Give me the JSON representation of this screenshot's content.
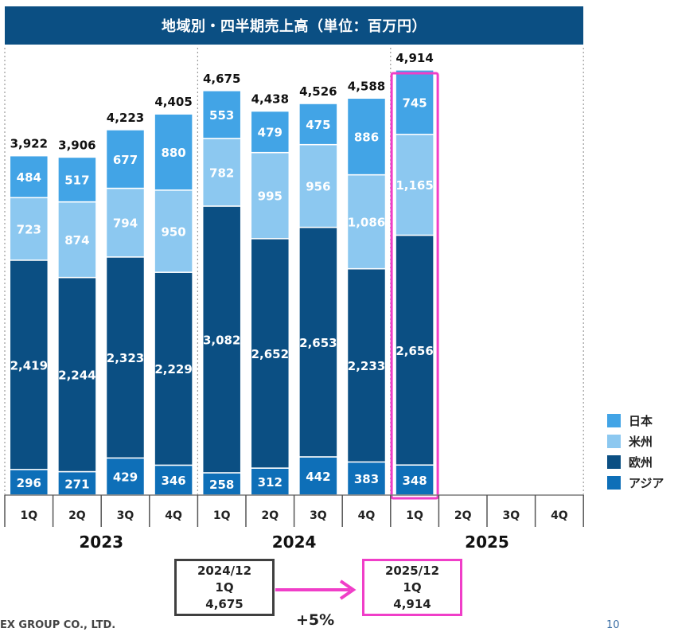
{
  "title": "地域別・四半期売上高（単位：百万円）",
  "colors": {
    "japan": "#42a4e6",
    "americas": "#8cc8f0",
    "europe": "#0b4f83",
    "asia": "#0e6fb8",
    "highlight": "#f03ec8"
  },
  "chart_data": {
    "type": "bar",
    "stacked": true,
    "title": "地域別・四半期売上高（単位：百万円）",
    "ylim": [
      0,
      5000
    ],
    "categories": [
      "1Q",
      "2Q",
      "3Q",
      "4Q",
      "1Q",
      "2Q",
      "3Q",
      "4Q",
      "1Q",
      "2Q",
      "3Q",
      "4Q"
    ],
    "years": [
      {
        "label": "2023",
        "quarters": 4
      },
      {
        "label": "2024",
        "quarters": 4
      },
      {
        "label": "2025",
        "quarters": 4
      }
    ],
    "series": [
      {
        "name": "アジア",
        "color": "#0e6fb8",
        "values": [
          296,
          271,
          429,
          346,
          258,
          312,
          442,
          383,
          348,
          null,
          null,
          null
        ],
        "labels": [
          "296",
          "271",
          "429",
          "346",
          "258",
          "312",
          "442",
          "383",
          "348",
          "",
          "",
          ""
        ]
      },
      {
        "name": "欧州",
        "color": "#0b4f83",
        "values": [
          2419,
          2244,
          2323,
          2229,
          3082,
          2652,
          2653,
          2233,
          2656,
          null,
          null,
          null
        ],
        "labels": [
          "2,419",
          "2,244",
          "2,323",
          "2,229",
          "3,082",
          "2,652",
          "2,653",
          "2,233",
          "2,656",
          "",
          "",
          ""
        ]
      },
      {
        "name": "米州",
        "color": "#8cc8f0",
        "values": [
          723,
          874,
          794,
          950,
          782,
          995,
          956,
          1086,
          1165,
          null,
          null,
          null
        ],
        "labels": [
          "723",
          "874",
          "794",
          "950",
          "782",
          "995",
          "956",
          "1,086",
          "1,165",
          "",
          "",
          ""
        ]
      },
      {
        "name": "日本",
        "color": "#42a4e6",
        "values": [
          484,
          517,
          677,
          880,
          553,
          479,
          475,
          886,
          745,
          null,
          null,
          null
        ],
        "labels": [
          "484",
          "517",
          "677",
          "880",
          "553",
          "479",
          "475",
          "886",
          "745",
          "",
          "",
          ""
        ]
      }
    ],
    "totals": [
      3922,
      3906,
      4223,
      4405,
      4675,
      4438,
      4526,
      4588,
      4914,
      null,
      null,
      null
    ],
    "total_labels": [
      "3,922",
      "3,906",
      "4,223",
      "4,405",
      "4,675",
      "4,438",
      "4,526",
      "4,588",
      "4,914",
      "",
      "",
      ""
    ],
    "highlight_index": 8,
    "legend": [
      "日本",
      "米州",
      "欧州",
      "アジア"
    ],
    "legend_position": "right",
    "grid": false
  },
  "comparison": {
    "before": {
      "period": "2024/12",
      "quarter": "1Q",
      "value": "4,675"
    },
    "after": {
      "period": "2025/12",
      "quarter": "1Q",
      "value": "4,914"
    },
    "growth": "+5%"
  },
  "footer": {
    "company": "EX GROUP CO., LTD.",
    "page": "10"
  }
}
